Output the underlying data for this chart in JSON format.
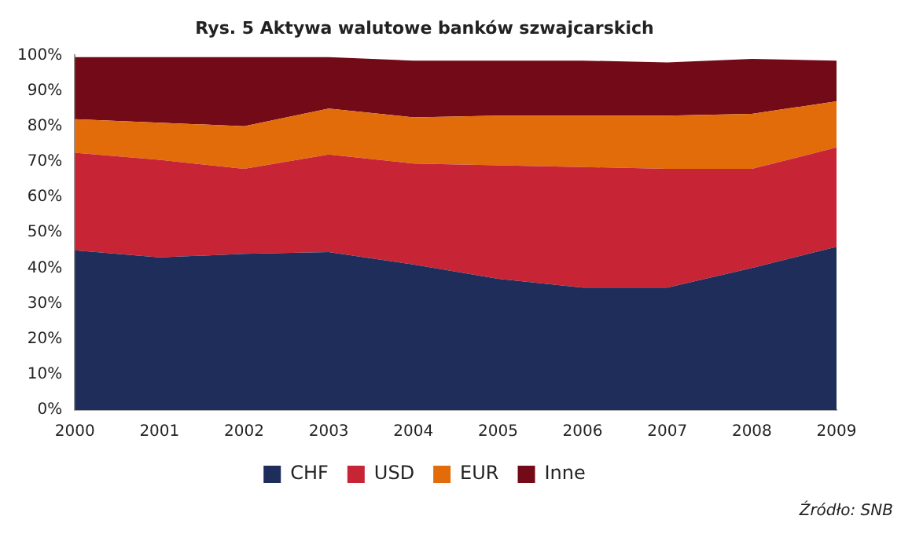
{
  "chart_data": {
    "type": "area",
    "title": "Rys. 5 Aktywa walutowe banków szwajcarskich",
    "stacked": true,
    "categories": [
      "2000",
      "2001",
      "2002",
      "2003",
      "2004",
      "2005",
      "2006",
      "2007",
      "2008",
      "2009"
    ],
    "series": [
      {
        "name": "CHF",
        "color": "#1f2d5a",
        "values": [
          45,
          43,
          44,
          44.5,
          41,
          37,
          34.5,
          34.5,
          40,
          46
        ]
      },
      {
        "name": "USD",
        "color": "#c72536",
        "values": [
          27.5,
          27.5,
          24,
          27.5,
          28.5,
          32,
          34,
          33.5,
          28,
          28
        ]
      },
      {
        "name": "EUR",
        "color": "#e36c0a",
        "values": [
          9.5,
          10.5,
          12,
          13,
          13,
          14,
          14.5,
          15,
          15.5,
          13
        ]
      },
      {
        "name": "Inne",
        "color": "#720a17",
        "values": [
          17.5,
          18.5,
          19.5,
          14.5,
          16,
          15.5,
          15.5,
          15,
          15.5,
          11.5
        ]
      }
    ],
    "ylim": [
      0,
      100
    ],
    "yticks": [
      {
        "value": 0,
        "label": "0%"
      },
      {
        "value": 10,
        "label": "10%"
      },
      {
        "value": 20,
        "label": "20%"
      },
      {
        "value": 30,
        "label": "30%"
      },
      {
        "value": 40,
        "label": "40%"
      },
      {
        "value": 50,
        "label": "50%"
      },
      {
        "value": 60,
        "label": "60%"
      },
      {
        "value": 70,
        "label": "70%"
      },
      {
        "value": 80,
        "label": "80%"
      },
      {
        "value": 90,
        "label": "90%"
      },
      {
        "value": 100,
        "label": "100%"
      }
    ],
    "grid": false,
    "legend": "bottom",
    "annotations": [
      "Źródło: SNB"
    ]
  }
}
